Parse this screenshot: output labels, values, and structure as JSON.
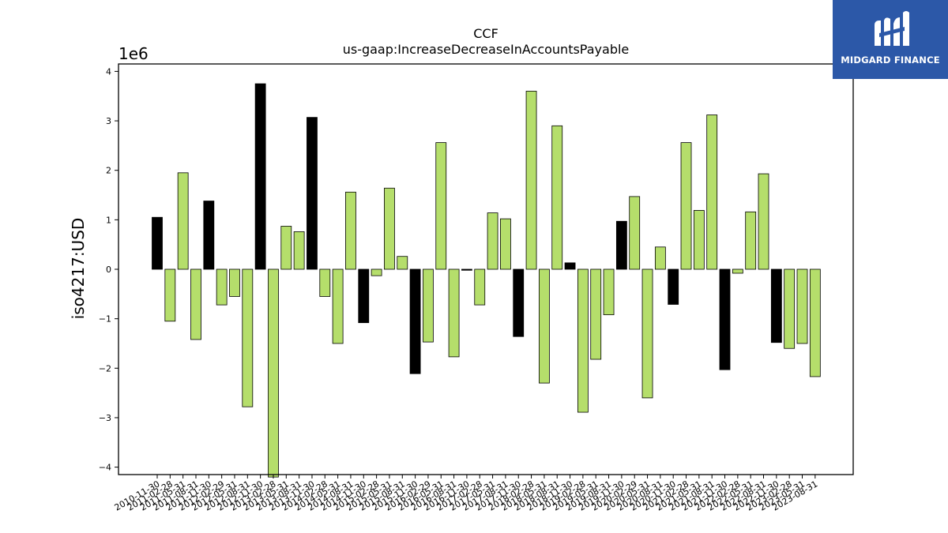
{
  "logo": {
    "text": "MIDGARD FINANCE",
    "color": "#2c58a8"
  },
  "chart_data": {
    "type": "bar",
    "title": "CCF",
    "subtitle": "us-gaap:IncreaseDecreaseInAccountsPayable",
    "ylabel": "iso4217:USD",
    "xlabel": "",
    "y_scale_label": "1e6",
    "y_multiplier": 1000000,
    "ylim": [
      -4.15,
      4.15
    ],
    "yticks": [
      -4,
      -3,
      -2,
      -1,
      0,
      1,
      2,
      3,
      4
    ],
    "grid": false,
    "colors": {
      "positive_alt": "#000000",
      "default": "#b5de6b"
    },
    "categories": [
      "2010-11-30",
      "2011-02-28",
      "2011-05-31",
      "2011-08-31",
      "2011-11-30",
      "2012-02-29",
      "2012-05-31",
      "2012-08-31",
      "2012-11-30",
      "2013-02-28",
      "2013-05-31",
      "2013-08-31",
      "2013-11-30",
      "2014-02-28",
      "2014-05-31",
      "2014-08-31",
      "2014-11-30",
      "2015-02-28",
      "2015-05-31",
      "2015-08-31",
      "2015-11-30",
      "2016-02-29",
      "2016-05-31",
      "2016-08-31",
      "2016-11-30",
      "2017-02-28",
      "2017-05-31",
      "2017-08-31",
      "2017-11-30",
      "2018-02-28",
      "2018-05-31",
      "2018-08-31",
      "2018-11-30",
      "2019-02-28",
      "2019-05-31",
      "2019-08-31",
      "2019-11-30",
      "2020-02-29",
      "2020-05-31",
      "2020-08-31",
      "2020-11-30",
      "2021-02-28",
      "2021-05-31",
      "2021-08-31",
      "2021-11-30",
      "2022-02-28",
      "2022-05-31",
      "2022-08-31",
      "2022-11-30",
      "2023-02-28",
      "2023-05-31",
      "2023-08-31"
    ],
    "values": [
      1.05,
      -1.05,
      1.95,
      -1.42,
      1.38,
      -0.72,
      -0.55,
      -2.78,
      3.75,
      -4.2,
      0.87,
      0.76,
      3.07,
      -0.55,
      -1.5,
      1.56,
      -1.08,
      -0.13,
      1.64,
      0.26,
      -2.11,
      -1.47,
      2.56,
      -1.77,
      -0.02,
      -0.72,
      1.14,
      1.02,
      -1.36,
      3.6,
      -2.3,
      2.9,
      0.13,
      -2.89,
      -1.82,
      -0.92,
      0.97,
      1.47,
      -2.6,
      0.45,
      -0.71,
      2.56,
      1.19,
      3.12,
      -2.03,
      -0.08,
      1.16,
      1.93,
      -1.48,
      -1.6,
      -1.5,
      -2.17
    ],
    "bar_colors": [
      "#000000",
      "#b5de6b",
      "#b5de6b",
      "#b5de6b",
      "#000000",
      "#b5de6b",
      "#b5de6b",
      "#b5de6b",
      "#000000",
      "#b5de6b",
      "#b5de6b",
      "#b5de6b",
      "#000000",
      "#b5de6b",
      "#b5de6b",
      "#b5de6b",
      "#000000",
      "#b5de6b",
      "#b5de6b",
      "#b5de6b",
      "#000000",
      "#b5de6b",
      "#b5de6b",
      "#b5de6b",
      "#000000",
      "#b5de6b",
      "#b5de6b",
      "#b5de6b",
      "#000000",
      "#b5de6b",
      "#b5de6b",
      "#b5de6b",
      "#000000",
      "#b5de6b",
      "#b5de6b",
      "#b5de6b",
      "#000000",
      "#b5de6b",
      "#b5de6b",
      "#b5de6b",
      "#000000",
      "#b5de6b",
      "#b5de6b",
      "#b5de6b",
      "#000000",
      "#b5de6b",
      "#b5de6b",
      "#b5de6b",
      "#000000",
      "#b5de6b",
      "#b5de6b",
      "#b5de6b"
    ]
  }
}
